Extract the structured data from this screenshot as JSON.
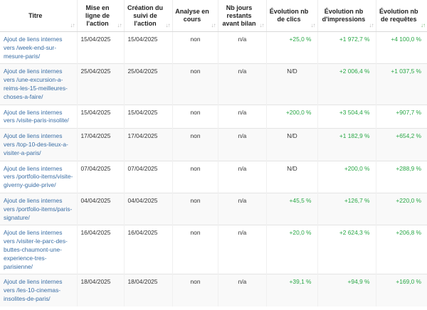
{
  "columns": [
    {
      "label": "Titre",
      "active_sort": false
    },
    {
      "label": "Mise en ligne de l'action",
      "active_sort": false
    },
    {
      "label": "Création du suivi de l'action",
      "active_sort": false
    },
    {
      "label": "Analyse en cours",
      "active_sort": false
    },
    {
      "label": "Nb jours restants avant bilan",
      "active_sort": false
    },
    {
      "label": "Évolution nb de clics",
      "active_sort": false
    },
    {
      "label": "Évolution nb d'impressions",
      "active_sort": false
    },
    {
      "label": "Évolution nb de requêtes",
      "active_sort": true
    }
  ],
  "sort_glyph": "↓↑",
  "rows": [
    {
      "title": "Ajout de liens internes vers /week-end-sur-mesure-paris/",
      "mise": "15/04/2025",
      "creation": "15/04/2025",
      "analyse": "non",
      "jours": "n/a",
      "clics": "+25,0 %",
      "impressions": "+1 972,7 %",
      "requetes": "+4 100,0 %"
    },
    {
      "title": "Ajout de liens internes vers /une-excursion-a-reims-les-15-meilleures-choses-a-faire/",
      "mise": "25/04/2025",
      "creation": "25/04/2025",
      "analyse": "non",
      "jours": "n/a",
      "clics": "N/D",
      "impressions": "+2 006,4 %",
      "requetes": "+1 037,5 %"
    },
    {
      "title": "Ajout de liens internes vers /visite-paris-insolite/",
      "mise": "15/04/2025",
      "creation": "15/04/2025",
      "analyse": "non",
      "jours": "n/a",
      "clics": "+200,0 %",
      "impressions": "+3 504,4 %",
      "requetes": "+907,7 %"
    },
    {
      "title": "Ajout de liens internes vers /top-10-des-lieux-a-visiter-a-paris/",
      "mise": "17/04/2025",
      "creation": "17/04/2025",
      "analyse": "non",
      "jours": "n/a",
      "clics": "N/D",
      "impressions": "+1 182,9 %",
      "requetes": "+654,2 %"
    },
    {
      "title": "Ajout de liens internes vers /portfolio-items/visite-giverny-guide-prive/",
      "mise": "07/04/2025",
      "creation": "07/04/2025",
      "analyse": "non",
      "jours": "n/a",
      "clics": "N/D",
      "impressions": "+200,0 %",
      "requetes": "+288,9 %"
    },
    {
      "title": "Ajout de liens internes vers /portfolio-items/paris-signature/",
      "mise": "04/04/2025",
      "creation": "04/04/2025",
      "analyse": "non",
      "jours": "n/a",
      "clics": "+45,5 %",
      "impressions": "+126,7 %",
      "requetes": "+220,0 %"
    },
    {
      "title": "Ajout de liens internes vers /visiter-le-parc-des-buttes-chaumont-une-experience-tres-parisienne/",
      "mise": "16/04/2025",
      "creation": "16/04/2025",
      "analyse": "non",
      "jours": "n/a",
      "clics": "+20,0 %",
      "impressions": "+2 624,3 %",
      "requetes": "+206,8 %"
    },
    {
      "title": "Ajout de liens internes vers /les-10-cinemas-insolites-de-paris/",
      "mise": "18/04/2025",
      "creation": "18/04/2025",
      "analyse": "non",
      "jours": "n/a",
      "clics": "+39,1 %",
      "impressions": "+94,9 %",
      "requetes": "+169,0 %"
    }
  ],
  "colors": {
    "link": "#3a6ea5",
    "positive": "#28a745",
    "sort_active": "#7bb87b"
  }
}
